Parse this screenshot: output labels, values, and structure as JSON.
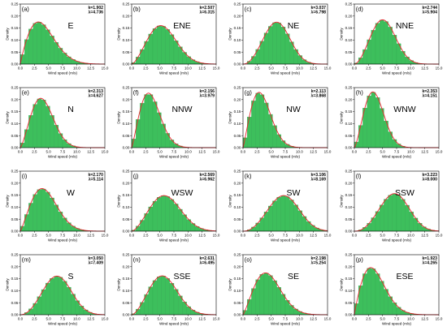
{
  "chart_data": {
    "type": "bar",
    "layout": "4x4 grid of histogram panels with fitted Weibull curves",
    "x_range": [
      0,
      15
    ],
    "y_range": [
      0,
      0.25
    ],
    "x_ticks": [
      "0.0",
      "2.5",
      "5.0",
      "7.5",
      "10.0",
      "12.5",
      "15.0"
    ],
    "y_ticks": [
      "0.00",
      "0.05",
      "0.10",
      "0.15",
      "0.20",
      "0.25"
    ],
    "xlabel": "Wind speed (m/s)",
    "ylabel": "Density",
    "bin_width": 0.75,
    "grid": false,
    "colors": {
      "bars": "#3dbf5c",
      "bar_edge": "#35a852",
      "curve": "#e8242c"
    },
    "panels": [
      {
        "label": "(a)",
        "direction": "E",
        "k_text": "k=1.902",
        "l_text": "λ=4.736",
        "k": 1.902,
        "lambda": 4.736
      },
      {
        "label": "(b)",
        "direction": "ENE",
        "k_text": "k=2.507",
        "l_text": "λ=6.315",
        "k": 2.507,
        "lambda": 6.315
      },
      {
        "label": "(c)",
        "direction": "NE",
        "k_text": "k=3.037",
        "l_text": "λ=6.798",
        "k": 3.037,
        "lambda": 6.798
      },
      {
        "label": "(d)",
        "direction": "NNE",
        "k_text": "k=2.744",
        "l_text": "λ=5.904",
        "k": 2.744,
        "lambda": 5.904
      },
      {
        "label": "(e)",
        "direction": "N",
        "k_text": "k=2.313",
        "l_text": "λ=4.627",
        "k": 2.313,
        "lambda": 4.627
      },
      {
        "label": "(f)",
        "direction": "NNW",
        "k_text": "k=2.156",
        "l_text": "λ=3.979",
        "k": 2.156,
        "lambda": 3.979
      },
      {
        "label": "(g)",
        "direction": "NW",
        "k_text": "k=2.113",
        "l_text": "λ=3.868",
        "k": 2.113,
        "lambda": 3.868
      },
      {
        "label": "(h)",
        "direction": "WNW",
        "k_text": "k=2.353",
        "l_text": "λ=4.151",
        "k": 2.353,
        "lambda": 4.151
      },
      {
        "label": "(i)",
        "direction": "W",
        "k_text": "k=2.170",
        "l_text": "λ=5.114",
        "k": 2.17,
        "lambda": 5.114
      },
      {
        "label": "(j)",
        "direction": "WSW",
        "k_text": "k=2.569",
        "l_text": "λ=6.962",
        "k": 2.569,
        "lambda": 6.962
      },
      {
        "label": "(k)",
        "direction": "SW",
        "k_text": "k=3.106",
        "l_text": "λ=8.169",
        "k": 3.106,
        "lambda": 8.169
      },
      {
        "label": "(l)",
        "direction": "SSW",
        "k_text": "k=3.223",
        "l_text": "λ=8.000",
        "k": 3.223,
        "lambda": 8.0
      },
      {
        "label": "(m)",
        "direction": "S",
        "k_text": "k=3.050",
        "l_text": "λ=7.409",
        "k": 3.05,
        "lambda": 7.409
      },
      {
        "label": "(n)",
        "direction": "SSE",
        "k_text": "k=2.631",
        "l_text": "λ=6.495",
        "k": 2.631,
        "lambda": 6.495
      },
      {
        "label": "(o)",
        "direction": "SE",
        "k_text": "k=2.198",
        "l_text": "λ=5.254",
        "k": 2.198,
        "lambda": 5.254
      },
      {
        "label": "(p)",
        "direction": "ESE",
        "k_text": "k=1.923",
        "l_text": "λ=4.265",
        "k": 1.923,
        "lambda": 4.265
      }
    ]
  }
}
